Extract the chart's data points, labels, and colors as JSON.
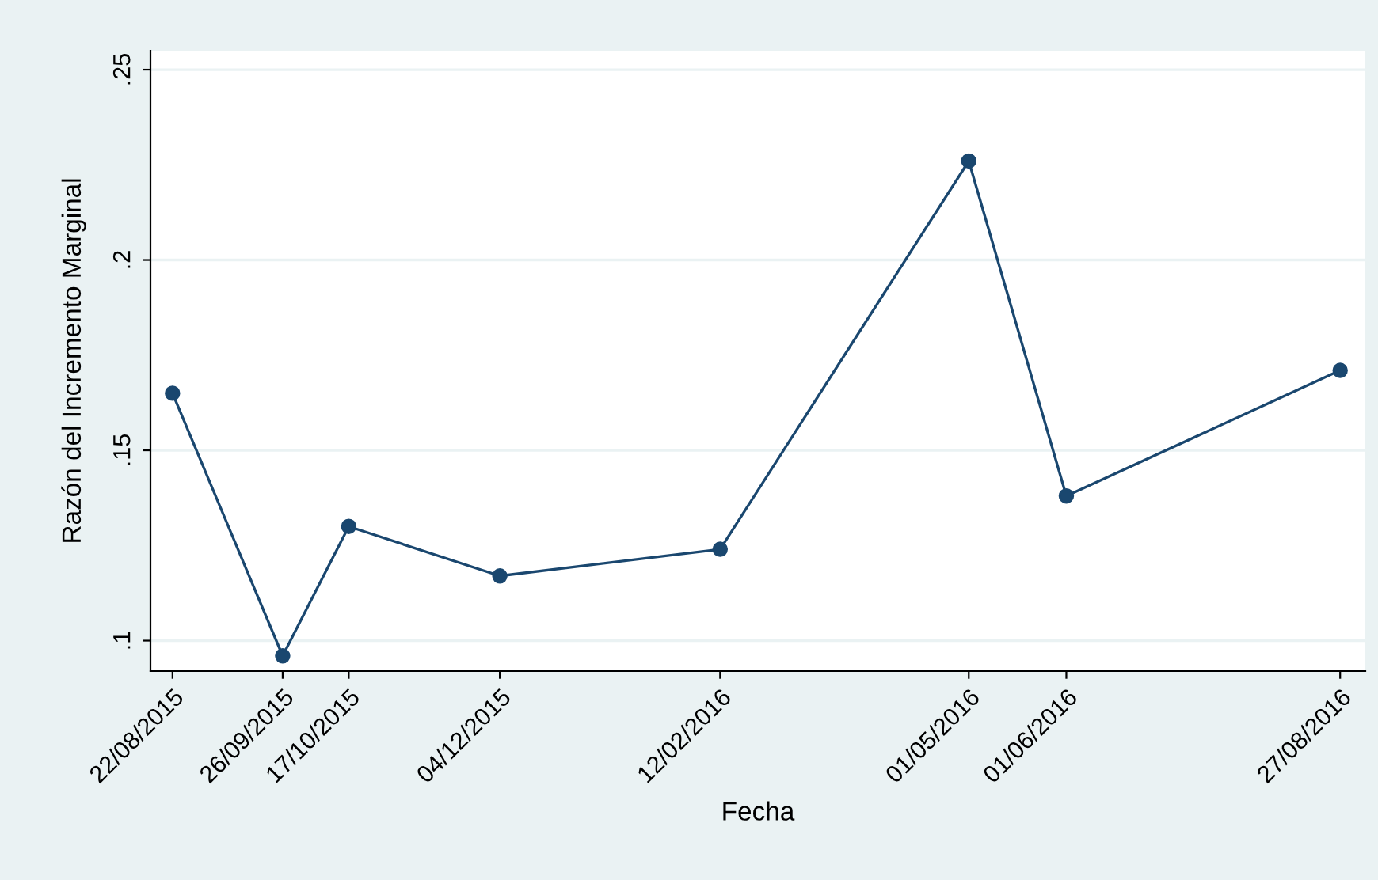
{
  "chart_data": {
    "type": "line",
    "xlabel": "Fecha",
    "ylabel": "Razón del Incremento Marginal",
    "x": [
      "2015-08-22",
      "2015-09-26",
      "2015-10-17",
      "2015-12-04",
      "2016-02-12",
      "2016-05-01",
      "2016-06-01",
      "2016-08-27"
    ],
    "series": [
      {
        "color": "#1a476f",
        "values": [
          0.165,
          0.096,
          0.13,
          0.117,
          0.124,
          0.226,
          0.138,
          0.171
        ]
      }
    ],
    "xlim": [
      "2015-08-15",
      "2016-09-04"
    ],
    "xticks": [
      {
        "value": "2015-08-22",
        "label": "22/08/2015"
      },
      {
        "value": "2015-09-26",
        "label": "26/09/2015"
      },
      {
        "value": "2015-10-17",
        "label": "17/10/2015"
      },
      {
        "value": "2015-12-04",
        "label": "04/12/2015"
      },
      {
        "value": "2016-02-12",
        "label": "12/02/2016"
      },
      {
        "value": "2016-05-01",
        "label": "01/05/2016"
      },
      {
        "value": "2016-06-01",
        "label": "01/06/2016"
      },
      {
        "value": "2016-08-27",
        "label": "27/08/2016"
      }
    ],
    "ylim": [
      0.092,
      0.255
    ],
    "yticks": [
      {
        "value": 0.1,
        "label": ".1"
      },
      {
        "value": 0.15,
        "label": ".15"
      },
      {
        "value": 0.2,
        "label": ".2"
      },
      {
        "value": 0.25,
        "label": ".25"
      }
    ],
    "grid": "y",
    "marker": "circle",
    "line_style": "solid"
  }
}
